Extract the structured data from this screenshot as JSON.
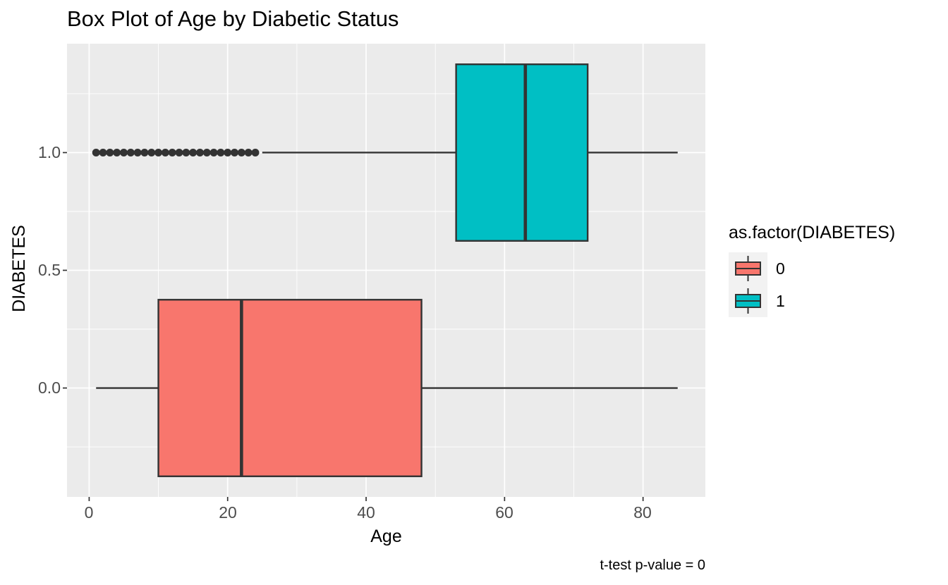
{
  "chart_data": {
    "type": "boxplot",
    "orientation": "horizontal",
    "title": "Box Plot of Age by Diabetic Status",
    "xlabel": "Age",
    "ylabel": "DIABETES",
    "caption": "t-test p-value = 0",
    "x_axis": {
      "tick_labels": [
        "0",
        "20",
        "40",
        "60",
        "80"
      ],
      "tick_values": [
        0,
        20,
        40,
        60,
        80
      ],
      "minor_values": [
        10,
        30,
        50,
        70
      ],
      "range": [
        -3.2,
        89.0
      ]
    },
    "y_axis": {
      "tick_labels": [
        "0.0",
        "0.5",
        "1.0"
      ],
      "tick_values": [
        0,
        0.5,
        1
      ],
      "minor_values": [
        -0.25,
        0.25,
        0.75,
        1.25
      ],
      "range": [
        -0.4625,
        1.4625
      ]
    },
    "legend": {
      "title": "as.factor(DIABETES)",
      "position": "right",
      "entries": [
        {
          "label": "0",
          "fill": "#F8766D"
        },
        {
          "label": "1",
          "fill": "#00BFC4"
        }
      ]
    },
    "series": [
      {
        "name": "0",
        "y": 0,
        "fill": "#F8766D",
        "whisker_min": 1,
        "q1": 10,
        "median": 22,
        "q3": 48,
        "whisker_max": 85,
        "outliers": []
      },
      {
        "name": "1",
        "y": 1,
        "fill": "#00BFC4",
        "whisker_min": 25,
        "q1": 53,
        "median": 63,
        "q3": 72,
        "whisker_max": 85,
        "outliers": [
          1,
          2,
          3,
          4,
          5,
          6,
          7,
          8,
          9,
          10,
          11,
          12,
          13,
          14,
          15,
          16,
          17,
          18,
          19,
          20,
          21,
          22,
          23,
          24
        ]
      }
    ],
    "box_half_height": 0.375,
    "grid": true,
    "colors": {
      "panel_bg": "#EBEBEB",
      "grid": "#FFFFFF",
      "stroke": "#333333",
      "tick_text": "#4D4D4D",
      "text": "#000000",
      "legend_key_bg": "#F2F2F2"
    }
  }
}
